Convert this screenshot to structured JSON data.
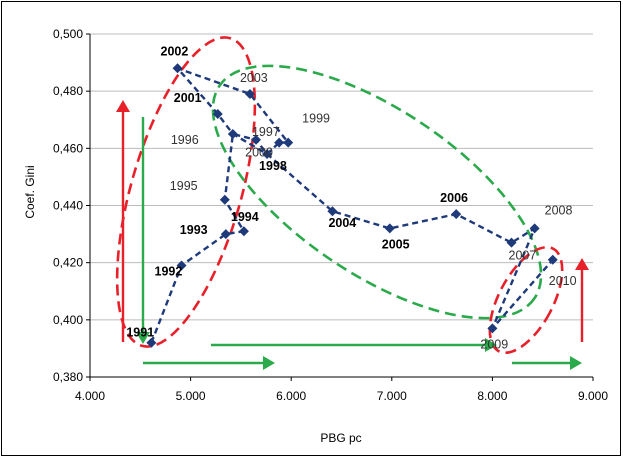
{
  "chart_data": {
    "type": "scatter",
    "xlabel": "PBG pc",
    "ylabel": "Coef. Gini",
    "xlim": [
      4000,
      9000
    ],
    "ylim": [
      0.38,
      0.5
    ],
    "x_ticks": [
      "4.000",
      "5.000",
      "6.000",
      "7.000",
      "8.000",
      "9.000"
    ],
    "y_ticks": [
      "0,380",
      "0,400",
      "0,420",
      "0,440",
      "0,460",
      "0,480",
      "0,500"
    ],
    "grid": "horizontal",
    "marker": "diamond",
    "line_style": "dashed",
    "colors": {
      "series": "#1f3a7a",
      "grid": "#bcbcbc",
      "red_annotation": "#e8202a",
      "green_annotation": "#2aaa4a"
    },
    "points": [
      {
        "year": "1991",
        "x": 4610,
        "y": 0.392,
        "bold": true
      },
      {
        "year": "1992",
        "x": 4910,
        "y": 0.419,
        "bold": true
      },
      {
        "year": "1993",
        "x": 5350,
        "y": 0.43,
        "bold": true
      },
      {
        "year": "1994",
        "x": 5530,
        "y": 0.431,
        "bold": true
      },
      {
        "year": "1995",
        "x": 5340,
        "y": 0.442,
        "bold": false
      },
      {
        "year": "1996",
        "x": 5420,
        "y": 0.465,
        "bold": false
      },
      {
        "year": "1997",
        "x": 5650,
        "y": 0.463,
        "bold": false
      },
      {
        "year": "1998",
        "x": 5760,
        "y": 0.458,
        "bold": true
      },
      {
        "year": "1999",
        "x": 5970,
        "y": 0.462,
        "bold": false
      },
      {
        "year": "2000",
        "x": 5880,
        "y": 0.462,
        "bold": false
      },
      {
        "year": "2001",
        "x": 5270,
        "y": 0.472,
        "bold": true
      },
      {
        "year": "2002",
        "x": 4870,
        "y": 0.488,
        "bold": true
      },
      {
        "year": "2003",
        "x": 5590,
        "y": 0.479,
        "bold": false
      },
      {
        "year": "2004",
        "x": 6410,
        "y": 0.438,
        "bold": true
      },
      {
        "year": "2005",
        "x": 6980,
        "y": 0.432,
        "bold": true
      },
      {
        "year": "2006",
        "x": 7640,
        "y": 0.437,
        "bold": true
      },
      {
        "year": "2007",
        "x": 8190,
        "y": 0.427,
        "bold": false
      },
      {
        "year": "2008",
        "x": 8420,
        "y": 0.432,
        "bold": false
      },
      {
        "year": "2009",
        "x": 8000,
        "y": 0.397,
        "bold": false
      },
      {
        "year": "2010",
        "x": 8600,
        "y": 0.421,
        "bold": false
      }
    ],
    "path_order": [
      "1991",
      "1992",
      "1993",
      "1994",
      "1995",
      "1996",
      "1997",
      "1998",
      "2000",
      "1999",
      "2003",
      "2002",
      "2001",
      "1996",
      "1998",
      "2004",
      "2005",
      "2006",
      "2007",
      "2008",
      "2009",
      "2010"
    ]
  }
}
